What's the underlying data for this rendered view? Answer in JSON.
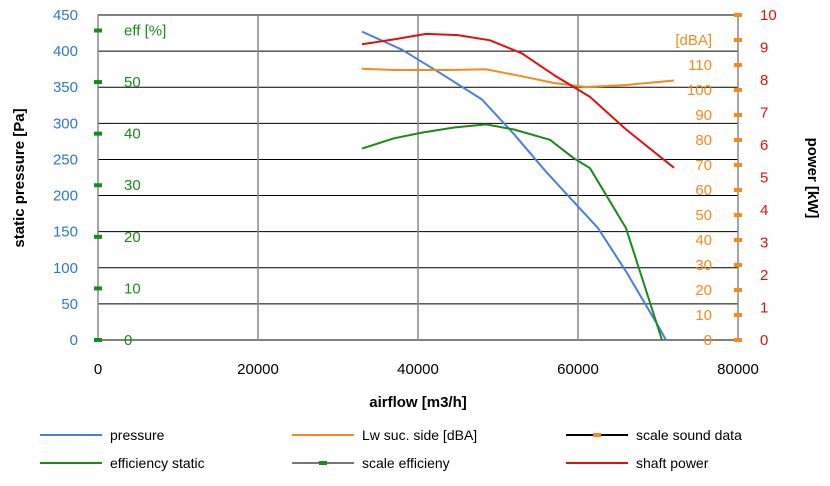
{
  "chart_data": {
    "type": "line",
    "title": "",
    "xlabel": "airflow [m3/h]",
    "xlim": [
      0,
      80000
    ],
    "x_ticks": [
      0,
      20000,
      40000,
      60000,
      80000
    ],
    "grid": true,
    "legend_position": "bottom",
    "axes": {
      "pressure": {
        "label": "static pressure [Pa]",
        "range": [
          0,
          450
        ],
        "ticks": [
          0,
          50,
          100,
          150,
          200,
          250,
          300,
          350,
          400,
          450
        ],
        "color": "#2e78c8"
      },
      "efficiency": {
        "label": "eff [%]",
        "range": [
          0,
          63
        ],
        "ticks": [
          0,
          10,
          20,
          30,
          40,
          50
        ],
        "color": "#1a8a1a"
      },
      "sound": {
        "label": "[dBA]",
        "range": [
          0,
          130
        ],
        "ticks": [
          0,
          10,
          20,
          30,
          40,
          50,
          60,
          70,
          80,
          90,
          100,
          110
        ],
        "color": "#f58a1f"
      },
      "power": {
        "label": "power [kW]",
        "range": [
          0,
          10
        ],
        "ticks": [
          0,
          1,
          2,
          3,
          4,
          5,
          6,
          7,
          8,
          9,
          10
        ],
        "color": "#e01010"
      }
    },
    "series": [
      {
        "name": "pressure",
        "axis": "pressure",
        "color": "#4a7fe0",
        "x": [
          33000,
          38000,
          43000,
          48000,
          52000,
          56000,
          60000,
          62500,
          66000,
          70000,
          71000
        ],
        "y": [
          427,
          402,
          368,
          333,
          285,
          233,
          185,
          155,
          95,
          20,
          0
        ]
      },
      {
        "name": "Lw suc. side [dBA]",
        "axis": "sound",
        "color": "#f58a1f",
        "x": [
          33000,
          37000,
          44000,
          48500,
          53000,
          57000,
          61000,
          66000,
          72000
        ],
        "y": [
          108.5,
          108,
          108,
          108.3,
          105.5,
          102.8,
          101.2,
          102,
          103.8
        ]
      },
      {
        "name": "efficiency static",
        "axis": "efficiency",
        "color": "#1a8a1a",
        "x": [
          33000,
          37000,
          40500,
          44500,
          48500,
          52000,
          56500,
          59500,
          61500,
          66000,
          70500
        ],
        "y": [
          37.1,
          39.1,
          40.2,
          41.2,
          41.8,
          40.8,
          38.8,
          35.2,
          33.3,
          21.7,
          0
        ]
      },
      {
        "name": "shaft power",
        "axis": "power",
        "color": "#e01010",
        "x": [
          33000,
          37000,
          41000,
          45000,
          49000,
          53000,
          57000,
          61500,
          66000,
          72000
        ],
        "y": [
          9.1,
          9.25,
          9.42,
          9.38,
          9.22,
          8.82,
          8.15,
          7.48,
          6.48,
          5.3
        ]
      },
      {
        "name": "scale efficieny",
        "axis": "efficiency",
        "color": "#1a8a1a",
        "markers_only": true,
        "x": [
          0,
          0,
          0,
          0,
          0,
          0,
          0
        ],
        "y": [
          0,
          10,
          20,
          30,
          40,
          50,
          60
        ]
      },
      {
        "name": "scale sound data",
        "axis": "sound",
        "color": "#f58a1f",
        "markers_only": true,
        "x": [
          80000,
          80000,
          80000,
          80000,
          80000,
          80000,
          80000,
          80000,
          80000,
          80000,
          80000,
          80000,
          80000,
          80000
        ],
        "y": [
          0,
          10,
          20,
          30,
          40,
          50,
          60,
          70,
          80,
          90,
          100,
          110,
          120,
          130
        ]
      }
    ],
    "legend": [
      {
        "label": "pressure",
        "color": "#4a7fe0",
        "marker": false
      },
      {
        "label": "Lw suc. side [dBA]",
        "color": "#f58a1f",
        "marker": false
      },
      {
        "label": "scale sound data",
        "color": "#000000",
        "marker": true,
        "marker_color": "#f58a1f"
      },
      {
        "label": "efficiency static",
        "color": "#1a8a1a",
        "marker": false
      },
      {
        "label": "scale efficieny",
        "color": "#777777",
        "marker": true,
        "marker_color": "#1a8a1a"
      },
      {
        "label": "shaft power",
        "color": "#e01010",
        "marker": false
      }
    ]
  }
}
